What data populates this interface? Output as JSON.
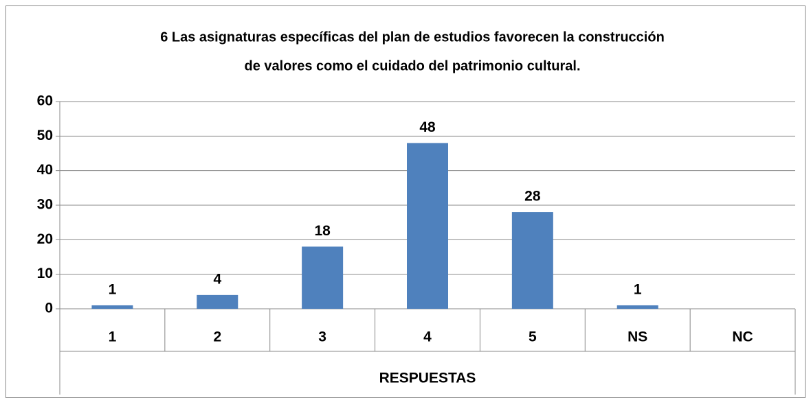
{
  "chart_data": {
    "type": "bar",
    "title": [
      "6 Las asignaturas específicas del plan de estudios favorecen la construcción",
      "de valores como el cuidado del patrimonio cultural."
    ],
    "x_label": "RESPUESTAS",
    "categories": [
      "1",
      "2",
      "3",
      "4",
      "5",
      "NS",
      "NC"
    ],
    "values": [
      1,
      4,
      18,
      48,
      28,
      1,
      null
    ],
    "color": "#4f81bd",
    "ylim": [
      0,
      60
    ],
    "yticks": [
      0,
      10,
      20,
      30,
      40,
      50,
      60
    ],
    "grid": true
  }
}
